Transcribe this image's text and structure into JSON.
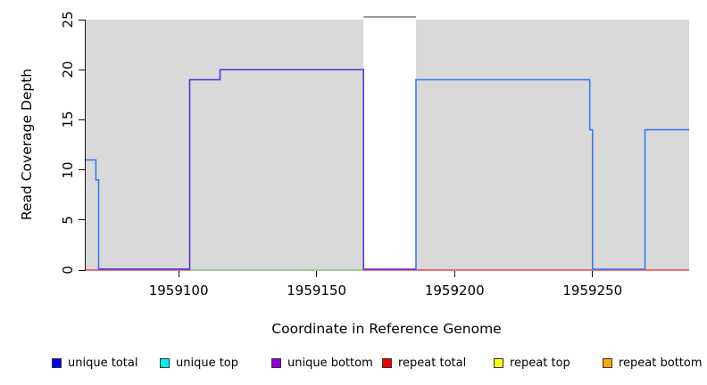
{
  "figure": {
    "y_axis": {
      "title": "Read Coverage Depth",
      "tick_labels": [
        "0",
        "5",
        "10",
        "15",
        "20",
        "25"
      ]
    },
    "x_axis": {
      "title": "Coordinate in Reference Genome",
      "tick_labels": [
        "1959100",
        "1959150",
        "1959200",
        "1959250"
      ]
    },
    "legend": [
      {
        "label": "unique total",
        "color": "#0000ee"
      },
      {
        "label": "unique top",
        "color": "#00eeee"
      },
      {
        "label": "unique bottom",
        "color": "#9400d3"
      },
      {
        "label": "repeat total",
        "color": "#ee0000"
      },
      {
        "label": "repeat top",
        "color": "#ffff00"
      },
      {
        "label": "repeat bottom",
        "color": "#ffa500"
      }
    ]
  },
  "chart_data": {
    "type": "line",
    "title": "",
    "xlabel": "Coordinate in Reference Genome",
    "ylabel": "Read Coverage Depth",
    "xlim": [
      1959066,
      1959285
    ],
    "ylim": [
      0,
      25
    ],
    "x_ticks": [
      1959100,
      1959150,
      1959200,
      1959250
    ],
    "y_ticks": [
      0,
      5,
      10,
      15,
      20,
      25
    ],
    "grid": false,
    "plot_background": "#d9d9d9",
    "legend_position": "bottom",
    "offscale_region": {
      "x_start": 1959167,
      "x_end": 1959186,
      "fill": "#ffffff",
      "cap_value": 25,
      "cap_color": "#999999",
      "note": "white band with gray cap line at top of plot (coverage off scale)"
    },
    "series": [
      {
        "name": "zero-line red (repeat total at 0)",
        "color": "#ee4455",
        "zero_offset": 0,
        "points": [
          [
            1959066,
            0
          ],
          [
            1959285,
            0
          ]
        ]
      },
      {
        "name": "zero-line green (top strands at 0)",
        "color": "#90d890",
        "zero_offset": 0,
        "points": [
          [
            1959104,
            0
          ],
          [
            1959167,
            0
          ]
        ]
      },
      {
        "name": "unique total (left block)",
        "color": "#3d79ee",
        "zero_offset": -1,
        "points": [
          [
            1959066,
            11
          ],
          [
            1959070,
            11
          ],
          [
            1959070,
            9
          ],
          [
            1959071,
            9
          ],
          [
            1959071,
            0
          ],
          [
            1959104,
            0
          ]
        ]
      },
      {
        "name": "unique total (right block)",
        "color": "#3d79ee",
        "zero_offset": -1,
        "points": [
          [
            1959186,
            0
          ],
          [
            1959186,
            19
          ],
          [
            1959249,
            19
          ],
          [
            1959249,
            14
          ],
          [
            1959250,
            14
          ],
          [
            1959250,
            0
          ],
          [
            1959269,
            0
          ],
          [
            1959269,
            14
          ],
          [
            1959285,
            14
          ]
        ]
      },
      {
        "name": "unique bottom (middle block)",
        "color": "#5636dc",
        "zero_offset": -1,
        "points": [
          [
            1959071,
            0
          ],
          [
            1959104,
            0
          ],
          [
            1959104,
            19
          ],
          [
            1959115,
            19
          ],
          [
            1959115,
            20
          ],
          [
            1959167,
            20
          ],
          [
            1959167,
            0
          ],
          [
            1959186,
            0
          ]
        ]
      }
    ]
  }
}
